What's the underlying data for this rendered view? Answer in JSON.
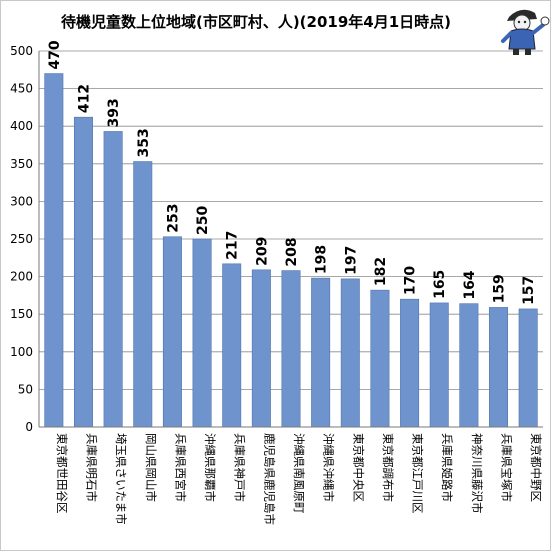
{
  "chart_data": {
    "type": "bar",
    "title": "待機児童数上位地域(市区町村、人)(2019年4月1日時点)",
    "xlabel": "",
    "ylabel": "",
    "ylim": [
      0,
      500
    ],
    "ytick_step": 50,
    "grid": true,
    "legend": "none",
    "bar_color": "#6F94CD",
    "bar_edge_color": "#4F74AD",
    "categories": [
      "東京都世田谷区",
      "兵庫県明石市",
      "埼玉県さいたま市",
      "岡山県岡山市",
      "兵庫県西宮市",
      "沖縄県那覇市",
      "兵庫県神戸市",
      "鹿児島県鹿児島市",
      "沖縄県南風原町",
      "沖縄県沖縄市",
      "東京都中央区",
      "東京都調布市",
      "東京都江戸川区",
      "兵庫県姫路市",
      "神奈川県藤沢市",
      "兵庫県宝塚市",
      "東京都中野区"
    ],
    "values": [
      470,
      412,
      393,
      353,
      253,
      250,
      217,
      209,
      208,
      198,
      197,
      182,
      170,
      165,
      164,
      159,
      157
    ],
    "data_labels": [
      "470",
      "412",
      "393",
      "353",
      "253",
      "250",
      "217",
      "209",
      "208",
      "198",
      "197",
      "182",
      "170",
      "165",
      "164",
      "159",
      "157"
    ]
  },
  "mascot": {
    "icon": "mascot-character-icon"
  }
}
